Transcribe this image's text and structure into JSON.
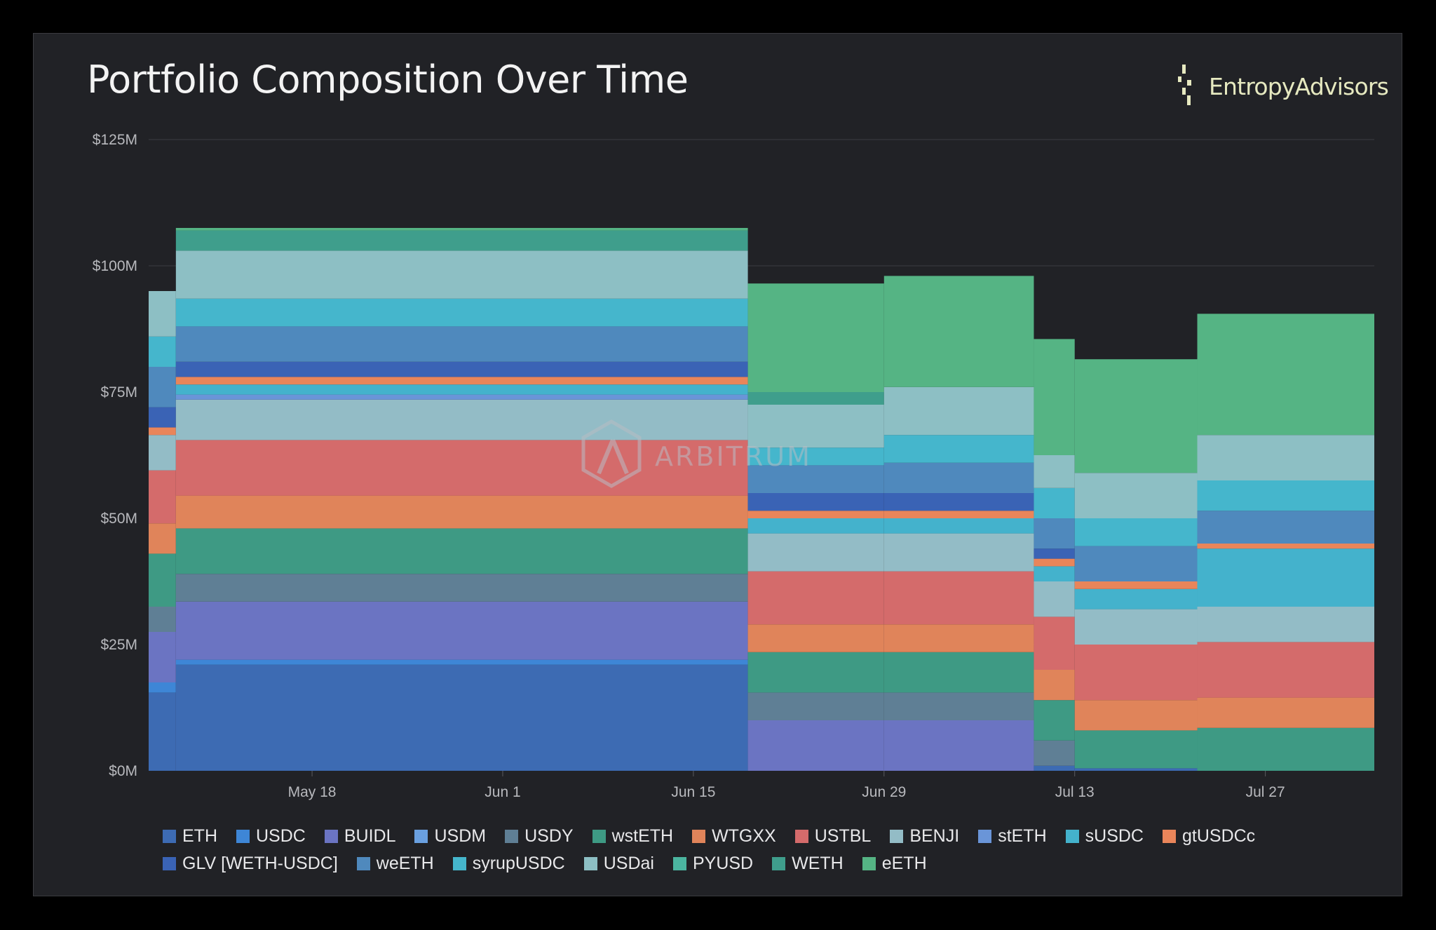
{
  "title": "Portfolio Composition Over Time",
  "brand": {
    "name_part1": "Entropy",
    "name_part2": "Advisors",
    "icon": "entropy-advisors-logo-icon",
    "color": "#e6e9c0"
  },
  "watermark": {
    "text": "ARBITRUM",
    "icon": "arbitrum-logo-icon"
  },
  "chart_data": {
    "type": "area",
    "stacked": true,
    "step": true,
    "title": "Portfolio Composition Over Time",
    "xlabel": "",
    "ylabel": "",
    "ylim": [
      0,
      125
    ],
    "y_unit": "$M",
    "yticks": [
      0,
      25,
      50,
      75,
      100,
      125
    ],
    "ytick_labels": [
      "$0M",
      "$25M",
      "$50M",
      "$75M",
      "$100M",
      "$125M"
    ],
    "grid": true,
    "legend_position": "bottom",
    "x_start": "2024-05-06",
    "x_end": "2024-08-04",
    "xticks": [
      "2024-05-18",
      "2024-06-01",
      "2024-06-15",
      "2024-06-29",
      "2024-07-13",
      "2024-07-27"
    ],
    "xtick_labels": [
      "May 18",
      "Jun 1",
      "Jun 15",
      "Jun 29",
      "Jul 13",
      "Jul 27"
    ],
    "periods": [
      {
        "start": "2024-05-06",
        "end": "2024-05-08",
        "values": {
          "ETH": 15.5,
          "USDC": 2,
          "BUIDL": 10,
          "USDY": 5,
          "wstETH": 10.5,
          "WTGXX": 6,
          "USTBL": 10.5,
          "BENJI": 7,
          "gtUSDCc": 1.5,
          "GLV [WETH-USDC]": 4,
          "weETH": 8,
          "syrupUSDC": 6,
          "USDai": 9
        }
      },
      {
        "start": "2024-05-08",
        "end": "2024-06-19",
        "values": {
          "ETH": 21,
          "USDC": 1,
          "BUIDL": 11.5,
          "USDY": 5.5,
          "wstETH": 9,
          "WTGXX": 6.5,
          "USTBL": 11,
          "BENJI": 8,
          "stETH": 1,
          "sUSDC": 2,
          "gtUSDCc": 1.5,
          "GLV [WETH-USDC]": 3,
          "weETH": 7,
          "syrupUSDC": 5.5,
          "USDai": 9.5,
          "WETH": 4,
          "eETH": 0.5
        }
      },
      {
        "start": "2024-06-19",
        "end": "2024-06-29",
        "values": {
          "BUIDL": 10,
          "USDY": 5.5,
          "wstETH": 8,
          "WTGXX": 5.5,
          "USTBL": 10.5,
          "BENJI": 7.5,
          "sUSDC": 3,
          "gtUSDCc": 1.5,
          "GLV [WETH-USDC]": 3.5,
          "weETH": 5.5,
          "syrupUSDC": 3.5,
          "USDai": 8.5,
          "WETH": 2.5,
          "eETH": 21.5
        }
      },
      {
        "start": "2024-06-29",
        "end": "2024-07-10",
        "values": {
          "BUIDL": 10,
          "USDY": 5.5,
          "wstETH": 8,
          "WTGXX": 5.5,
          "USTBL": 10.5,
          "BENJI": 7.5,
          "sUSDC": 3,
          "gtUSDCc": 1.5,
          "GLV [WETH-USDC]": 3.5,
          "weETH": 6,
          "syrupUSDC": 5.5,
          "USDai": 9.5,
          "eETH": 22
        }
      },
      {
        "start": "2024-07-10",
        "end": "2024-07-13",
        "values": {
          "ETH": 1,
          "USDY": 5,
          "wstETH": 8,
          "WTGXX": 6,
          "USTBL": 10.5,
          "BENJI": 7,
          "sUSDC": 3,
          "gtUSDCc": 1.5,
          "GLV [WETH-USDC]": 2,
          "weETH": 6,
          "syrupUSDC": 6,
          "USDai": 6.5,
          "eETH": 23
        }
      },
      {
        "start": "2024-07-13",
        "end": "2024-07-22",
        "values": {
          "ETH": 0.5,
          "wstETH": 7.5,
          "WTGXX": 6,
          "USTBL": 11,
          "BENJI": 7,
          "sUSDC": 4,
          "gtUSDCc": 1.5,
          "weETH": 7,
          "syrupUSDC": 5.5,
          "USDai": 9,
          "eETH": 22.5
        }
      },
      {
        "start": "2024-07-22",
        "end": "2024-08-04",
        "values": {
          "wstETH": 8.5,
          "WTGXX": 6,
          "USTBL": 11,
          "BENJI": 7,
          "sUSDC": 11.5,
          "gtUSDCc": 1,
          "weETH": 6.5,
          "syrupUSDC": 6,
          "USDai": 9,
          "eETH": 24
        }
      }
    ],
    "series": [
      {
        "name": "ETH",
        "color": "#3d6bb3"
      },
      {
        "name": "USDC",
        "color": "#3e86d6"
      },
      {
        "name": "BUIDL",
        "color": "#6b74c2"
      },
      {
        "name": "USDM",
        "color": "#6aa0e0"
      },
      {
        "name": "USDY",
        "color": "#5f7f95"
      },
      {
        "name": "wstETH",
        "color": "#3e9a84"
      },
      {
        "name": "WTGXX",
        "color": "#e0845a"
      },
      {
        "name": "USTBL",
        "color": "#d46b6b"
      },
      {
        "name": "BENJI",
        "color": "#93bcc6"
      },
      {
        "name": "stETH",
        "color": "#6a95d8"
      },
      {
        "name": "sUSDC",
        "color": "#44b2cc"
      },
      {
        "name": "gtUSDCc",
        "color": "#e9855a"
      },
      {
        "name": "GLV [WETH-USDC]",
        "color": "#3a63b5"
      },
      {
        "name": "weETH",
        "color": "#4f89bd"
      },
      {
        "name": "syrupUSDC",
        "color": "#45b6cc"
      },
      {
        "name": "USDai",
        "color": "#8dbfc4"
      },
      {
        "name": "PYUSD",
        "color": "#4bb5a0"
      },
      {
        "name": "WETH",
        "color": "#3f9e8c"
      },
      {
        "name": "eETH",
        "color": "#55b484"
      }
    ]
  }
}
